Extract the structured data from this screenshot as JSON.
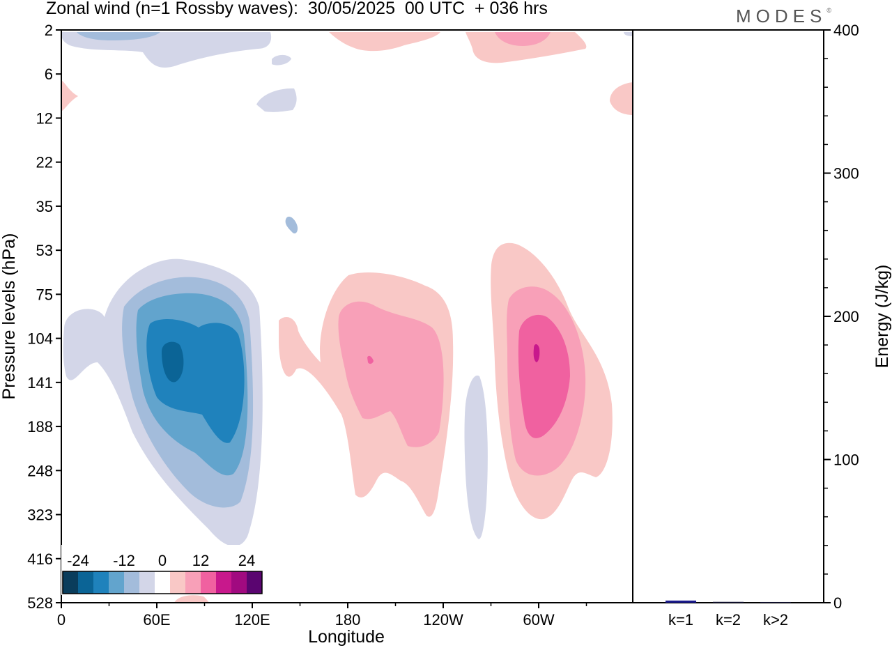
{
  "header": {
    "title": "Zonal wind (n=1 Rossby waves):  30/05/2025  00 UTC  + 036 hrs",
    "logo_text": "MODES",
    "logo_mark": "©"
  },
  "chart_data": [
    {
      "type": "heatmap",
      "title": "Zonal wind (n=1 Rossby waves):  30/05/2025  00 UTC  + 036 hrs",
      "xlabel": "Longitude",
      "ylabel": "Pressure levels (hPa)",
      "x_ticks": [
        "0",
        "60E",
        "120E",
        "180",
        "120W",
        "60W"
      ],
      "x_tick_degrees": [
        0,
        60,
        120,
        180,
        240,
        300
      ],
      "xlim": [
        0,
        360
      ],
      "y_levels": [
        "2",
        "6",
        "12",
        "22",
        "35",
        "53",
        "75",
        "104",
        "141",
        "188",
        "248",
        "323",
        "416",
        "528"
      ],
      "y_scale": "model levels (top 2 hPa, bottom 528 hPa)",
      "colorbar": {
        "labels": [
          "-24",
          "-12",
          "0",
          "12",
          "24"
        ],
        "levels": [
          -28,
          -24,
          -20,
          -16,
          -12,
          -8,
          -4,
          4,
          8,
          12,
          16,
          20,
          24,
          28
        ],
        "colors": [
          "#0a3d5c",
          "#0b6496",
          "#1f82bc",
          "#62a4cd",
          "#a3bcdb",
          "#d3d6e8",
          "#ffffff",
          "#f9c8c6",
          "#f8a0b8",
          "#f061a0",
          "#c8188c",
          "#a10a80",
          "#5a0570"
        ],
        "placement": "bottom-left, inside plot"
      },
      "features": [
        {
          "sign": "negative",
          "max_abs": 24,
          "lon_center": 70,
          "level": "104-141",
          "note": "easterly anomaly core over 60E-120E"
        },
        {
          "sign": "positive",
          "max_abs": 16,
          "lon_center": 205,
          "level": "104-141",
          "note": "westerly anomaly near 180-150W"
        },
        {
          "sign": "positive",
          "max_abs": 20,
          "lon_center": 300,
          "level": "104-141",
          "note": "westerly anomaly near 60W"
        },
        {
          "sign": "negative",
          "max_abs": 4,
          "lon_center": 265,
          "level": "141-323",
          "note": "weak easterly strip"
        }
      ]
    },
    {
      "type": "bar",
      "ylabel": "Energy (J/kg)",
      "categories": [
        "k=1",
        "k=2",
        "k>2"
      ],
      "values": [
        1.5,
        0.6,
        0.5
      ],
      "colors": [
        "#1a1a8c",
        "#111133",
        "#111133"
      ],
      "ylim": [
        0,
        400
      ],
      "y_ticks": [
        "0",
        "100",
        "200",
        "300",
        "400"
      ],
      "axis_side": "right"
    }
  ]
}
